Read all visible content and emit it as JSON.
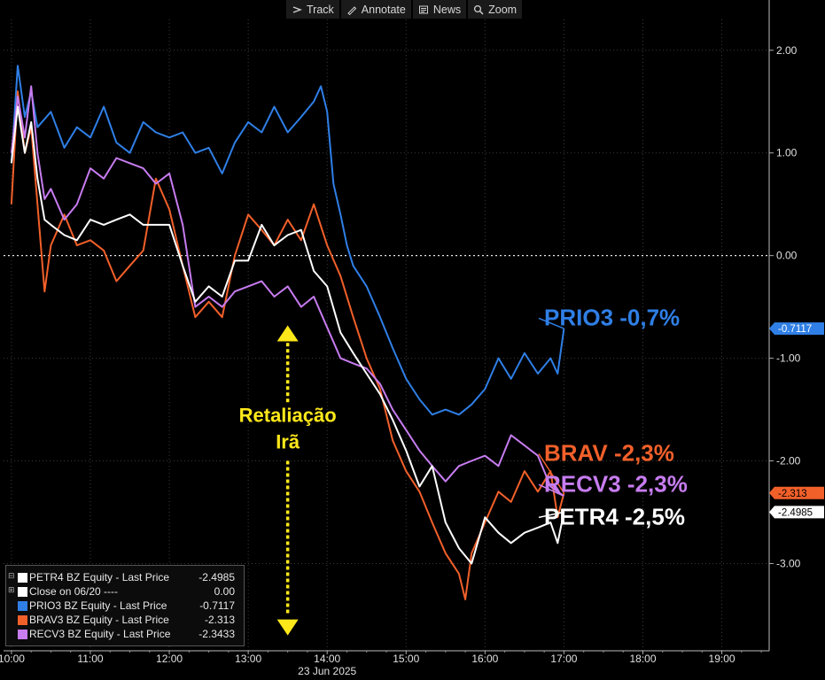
{
  "toolbar": {
    "track": "Track",
    "annotate": "Annotate",
    "news": "News",
    "zoom": "Zoom"
  },
  "legend": [
    {
      "name": "PETR4 BZ Equity - Last Price",
      "value": "-2.4985",
      "color": "#ffffff"
    },
    {
      "name": "Close on 06/20 ----",
      "value": "0.00",
      "color": "#ffffff"
    },
    {
      "name": "PRIO3 BZ Equity - Last Price",
      "value": "-0.7117",
      "color": "#2f7fe6"
    },
    {
      "name": "BRAV3 BZ Equity - Last Price",
      "value": "-2.313",
      "color": "#f2602a"
    },
    {
      "name": "RECV3 BZ Equity - Last Price",
      "value": "-2.3433",
      "color": "#c77cf0"
    }
  ],
  "annotations": {
    "event_line1": "Retaliação",
    "event_line2": "Irã",
    "event_color": "#ffe81a",
    "labels": [
      {
        "text": "PRIO3 -0,7%",
        "color": "#2f7fe6"
      },
      {
        "text": "BRAV -2,3%",
        "color": "#f2602a"
      },
      {
        "text": "RECV3 -2,3%",
        "color": "#c77cf0"
      },
      {
        "text": "PETR4 -2,5%",
        "color": "#ffffff"
      }
    ]
  },
  "chart_data": {
    "type": "line",
    "xlabel": "23 Jun 2025",
    "x_ticks": [
      "10:00",
      "11:00",
      "12:00",
      "13:00",
      "14:00",
      "15:00",
      "16:00",
      "17:00",
      "18:00",
      "19:00"
    ],
    "x_range_hours": [
      9.9,
      19.6
    ],
    "ylim": [
      -3.85,
      2.3
    ],
    "y_ticks": [
      "2.00",
      "1.00",
      "0.00",
      "-1.00",
      "-2.00",
      "-3.00"
    ],
    "y_tick_values": [
      2,
      1,
      0,
      -1,
      -2,
      -3
    ],
    "zero_line": 0,
    "last_value_badges": [
      {
        "text": "-0.7117",
        "value": -0.7117,
        "bg": "#2f7fe6",
        "fg": "#ffffff"
      },
      {
        "text": "-2.313",
        "value": -2.313,
        "bg": "#f2602a",
        "fg": "#000000"
      },
      {
        "text": "-2.4985",
        "value": -2.4985,
        "bg": "#ffffff",
        "fg": "#000000"
      }
    ],
    "series": [
      {
        "name": "PRIO3",
        "color": "#2f7fe6",
        "points": [
          [
            10.0,
            0.9
          ],
          [
            10.08,
            1.85
          ],
          [
            10.17,
            1.35
          ],
          [
            10.25,
            1.6
          ],
          [
            10.33,
            1.25
          ],
          [
            10.5,
            1.4
          ],
          [
            10.67,
            1.05
          ],
          [
            10.83,
            1.25
          ],
          [
            11.0,
            1.15
          ],
          [
            11.17,
            1.45
          ],
          [
            11.33,
            1.1
          ],
          [
            11.5,
            1.0
          ],
          [
            11.67,
            1.3
          ],
          [
            11.83,
            1.2
          ],
          [
            12.0,
            1.15
          ],
          [
            12.17,
            1.2
          ],
          [
            12.33,
            1.0
          ],
          [
            12.5,
            1.05
          ],
          [
            12.67,
            0.8
          ],
          [
            12.83,
            1.1
          ],
          [
            13.0,
            1.3
          ],
          [
            13.17,
            1.2
          ],
          [
            13.33,
            1.45
          ],
          [
            13.5,
            1.2
          ],
          [
            13.67,
            1.35
          ],
          [
            13.83,
            1.5
          ],
          [
            13.92,
            1.65
          ],
          [
            14.0,
            1.4
          ],
          [
            14.08,
            0.7
          ],
          [
            14.17,
            0.4
          ],
          [
            14.25,
            0.1
          ],
          [
            14.33,
            -0.1
          ],
          [
            14.5,
            -0.3
          ],
          [
            14.67,
            -0.6
          ],
          [
            14.83,
            -0.9
          ],
          [
            15.0,
            -1.2
          ],
          [
            15.17,
            -1.4
          ],
          [
            15.33,
            -1.55
          ],
          [
            15.5,
            -1.5
          ],
          [
            15.67,
            -1.55
          ],
          [
            15.83,
            -1.45
          ],
          [
            16.0,
            -1.3
          ],
          [
            16.17,
            -1.0
          ],
          [
            16.33,
            -1.2
          ],
          [
            16.5,
            -0.95
          ],
          [
            16.67,
            -1.15
          ],
          [
            16.83,
            -1.0
          ],
          [
            16.92,
            -1.15
          ],
          [
            17.0,
            -0.7117
          ]
        ]
      },
      {
        "name": "BRAV3",
        "color": "#f2602a",
        "points": [
          [
            10.0,
            0.5
          ],
          [
            10.08,
            1.6
          ],
          [
            10.17,
            1.0
          ],
          [
            10.25,
            1.25
          ],
          [
            10.33,
            0.5
          ],
          [
            10.42,
            -0.35
          ],
          [
            10.5,
            0.1
          ],
          [
            10.67,
            0.4
          ],
          [
            10.83,
            0.1
          ],
          [
            11.0,
            0.15
          ],
          [
            11.17,
            0.05
          ],
          [
            11.33,
            -0.25
          ],
          [
            11.5,
            -0.1
          ],
          [
            11.67,
            0.05
          ],
          [
            11.83,
            0.75
          ],
          [
            12.0,
            0.45
          ],
          [
            12.17,
            -0.1
          ],
          [
            12.33,
            -0.6
          ],
          [
            12.5,
            -0.45
          ],
          [
            12.67,
            -0.6
          ],
          [
            12.83,
            0.0
          ],
          [
            13.0,
            0.4
          ],
          [
            13.17,
            0.25
          ],
          [
            13.33,
            0.1
          ],
          [
            13.5,
            0.35
          ],
          [
            13.67,
            0.15
          ],
          [
            13.83,
            0.5
          ],
          [
            14.0,
            0.1
          ],
          [
            14.17,
            -0.2
          ],
          [
            14.33,
            -0.6
          ],
          [
            14.5,
            -1.0
          ],
          [
            14.67,
            -1.3
          ],
          [
            14.83,
            -1.8
          ],
          [
            15.0,
            -2.1
          ],
          [
            15.17,
            -2.3
          ],
          [
            15.33,
            -2.6
          ],
          [
            15.5,
            -2.9
          ],
          [
            15.67,
            -3.1
          ],
          [
            15.75,
            -3.35
          ],
          [
            15.83,
            -2.9
          ],
          [
            16.0,
            -2.6
          ],
          [
            16.17,
            -2.3
          ],
          [
            16.33,
            -2.4
          ],
          [
            16.5,
            -2.1
          ],
          [
            16.67,
            -2.3
          ],
          [
            16.83,
            -2.1
          ],
          [
            16.92,
            -2.55
          ],
          [
            17.0,
            -2.313
          ]
        ]
      },
      {
        "name": "RECV3",
        "color": "#c77cf0",
        "points": [
          [
            10.0,
            1.0
          ],
          [
            10.08,
            1.55
          ],
          [
            10.17,
            1.15
          ],
          [
            10.25,
            1.65
          ],
          [
            10.33,
            1.0
          ],
          [
            10.42,
            0.55
          ],
          [
            10.5,
            0.65
          ],
          [
            10.67,
            0.35
          ],
          [
            10.83,
            0.5
          ],
          [
            11.0,
            0.85
          ],
          [
            11.17,
            0.75
          ],
          [
            11.33,
            0.95
          ],
          [
            11.5,
            0.9
          ],
          [
            11.67,
            0.85
          ],
          [
            11.83,
            0.7
          ],
          [
            12.0,
            0.8
          ],
          [
            12.17,
            0.3
          ],
          [
            12.33,
            -0.5
          ],
          [
            12.5,
            -0.4
          ],
          [
            12.67,
            -0.5
          ],
          [
            12.83,
            -0.35
          ],
          [
            13.0,
            -0.3
          ],
          [
            13.17,
            -0.25
          ],
          [
            13.33,
            -0.4
          ],
          [
            13.5,
            -0.3
          ],
          [
            13.67,
            -0.5
          ],
          [
            13.83,
            -0.4
          ],
          [
            14.0,
            -0.7
          ],
          [
            14.17,
            -1.0
          ],
          [
            14.33,
            -1.05
          ],
          [
            14.5,
            -1.1
          ],
          [
            14.67,
            -1.25
          ],
          [
            14.83,
            -1.5
          ],
          [
            15.0,
            -1.7
          ],
          [
            15.17,
            -1.9
          ],
          [
            15.33,
            -2.05
          ],
          [
            15.5,
            -2.2
          ],
          [
            15.67,
            -2.05
          ],
          [
            15.83,
            -2.0
          ],
          [
            16.0,
            -1.95
          ],
          [
            16.17,
            -2.05
          ],
          [
            16.33,
            -1.75
          ],
          [
            16.5,
            -1.85
          ],
          [
            16.67,
            -1.95
          ],
          [
            16.83,
            -2.25
          ],
          [
            17.0,
            -2.3433
          ]
        ]
      },
      {
        "name": "PETR4",
        "color": "#ffffff",
        "points": [
          [
            10.0,
            0.9
          ],
          [
            10.08,
            1.45
          ],
          [
            10.17,
            1.0
          ],
          [
            10.25,
            1.3
          ],
          [
            10.33,
            0.75
          ],
          [
            10.42,
            0.35
          ],
          [
            10.5,
            0.3
          ],
          [
            10.67,
            0.2
          ],
          [
            10.83,
            0.15
          ],
          [
            11.0,
            0.35
          ],
          [
            11.17,
            0.3
          ],
          [
            11.33,
            0.35
          ],
          [
            11.5,
            0.4
          ],
          [
            11.67,
            0.3
          ],
          [
            11.83,
            0.3
          ],
          [
            12.0,
            0.3
          ],
          [
            12.17,
            -0.1
          ],
          [
            12.33,
            -0.45
          ],
          [
            12.5,
            -0.3
          ],
          [
            12.67,
            -0.4
          ],
          [
            12.83,
            -0.05
          ],
          [
            13.0,
            -0.05
          ],
          [
            13.17,
            0.3
          ],
          [
            13.33,
            0.1
          ],
          [
            13.5,
            0.2
          ],
          [
            13.67,
            0.25
          ],
          [
            13.83,
            -0.15
          ],
          [
            14.0,
            -0.3
          ],
          [
            14.17,
            -0.75
          ],
          [
            14.33,
            -0.95
          ],
          [
            14.5,
            -1.15
          ],
          [
            14.67,
            -1.35
          ],
          [
            14.83,
            -1.6
          ],
          [
            15.0,
            -1.9
          ],
          [
            15.17,
            -2.25
          ],
          [
            15.33,
            -2.05
          ],
          [
            15.5,
            -2.6
          ],
          [
            15.67,
            -2.85
          ],
          [
            15.83,
            -3.0
          ],
          [
            16.0,
            -2.55
          ],
          [
            16.17,
            -2.7
          ],
          [
            16.33,
            -2.8
          ],
          [
            16.5,
            -2.7
          ],
          [
            16.67,
            -2.65
          ],
          [
            16.83,
            -2.6
          ],
          [
            16.92,
            -2.8
          ],
          [
            17.0,
            -2.4985
          ]
        ]
      }
    ]
  }
}
